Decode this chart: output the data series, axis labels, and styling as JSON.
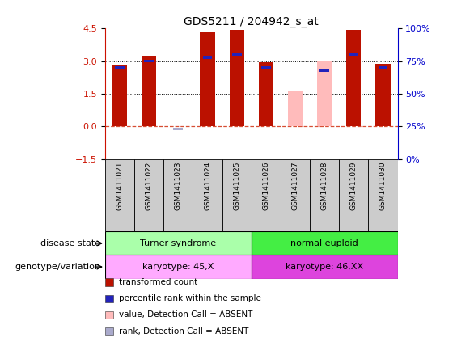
{
  "title": "GDS5211 / 204942_s_at",
  "samples": [
    "GSM1411021",
    "GSM1411022",
    "GSM1411023",
    "GSM1411024",
    "GSM1411025",
    "GSM1411026",
    "GSM1411027",
    "GSM1411028",
    "GSM1411029",
    "GSM1411030"
  ],
  "red_values": [
    2.85,
    3.25,
    0.0,
    4.35,
    4.45,
    2.95,
    0.0,
    0.0,
    4.42,
    2.88
  ],
  "pink_values": [
    0.0,
    0.0,
    0.0,
    0.0,
    0.0,
    0.0,
    1.6,
    3.0,
    0.0,
    0.0
  ],
  "blue_ranks": [
    70,
    75,
    0,
    78,
    80,
    70,
    0,
    68,
    80,
    70
  ],
  "blue_absent_rank": [
    0,
    0,
    23,
    0,
    0,
    0,
    0,
    0,
    0,
    0
  ],
  "is_absent_value": [
    false,
    false,
    false,
    false,
    false,
    false,
    true,
    true,
    false,
    false
  ],
  "is_absent_rank": [
    false,
    false,
    true,
    false,
    false,
    false,
    false,
    false,
    false,
    false
  ],
  "ylim_left": [
    -1.5,
    4.5
  ],
  "ylim_right": [
    0,
    100
  ],
  "yticks_left": [
    -1.5,
    0.0,
    1.5,
    3.0,
    4.5
  ],
  "yticks_right": [
    0,
    25,
    50,
    75,
    100
  ],
  "bar_color_red": "#bb1100",
  "bar_color_pink": "#ffbbbb",
  "rank_color_blue": "#2222bb",
  "rank_color_absent": "#aaaacc",
  "bar_width": 0.5,
  "disease_state_groups": [
    {
      "label": "Turner syndrome",
      "start": 0,
      "end": 5,
      "color": "#aaffaa"
    },
    {
      "label": "normal euploid",
      "start": 5,
      "end": 10,
      "color": "#44ee44"
    }
  ],
  "genotype_groups": [
    {
      "label": "karyotype: 45,X",
      "start": 0,
      "end": 5,
      "color": "#ffaaff"
    },
    {
      "label": "karyotype: 46,XX",
      "start": 5,
      "end": 10,
      "color": "#dd44dd"
    }
  ],
  "legend_items": [
    {
      "label": "transformed count",
      "color": "#bb1100"
    },
    {
      "label": "percentile rank within the sample",
      "color": "#2222bb"
    },
    {
      "label": "value, Detection Call = ABSENT",
      "color": "#ffbbbb"
    },
    {
      "label": "rank, Detection Call = ABSENT",
      "color": "#aaaacc"
    }
  ],
  "left_label_disease": "disease state",
  "left_label_genotype": "genotype/variation",
  "fig_width": 5.65,
  "fig_height": 4.23,
  "dpi": 100
}
